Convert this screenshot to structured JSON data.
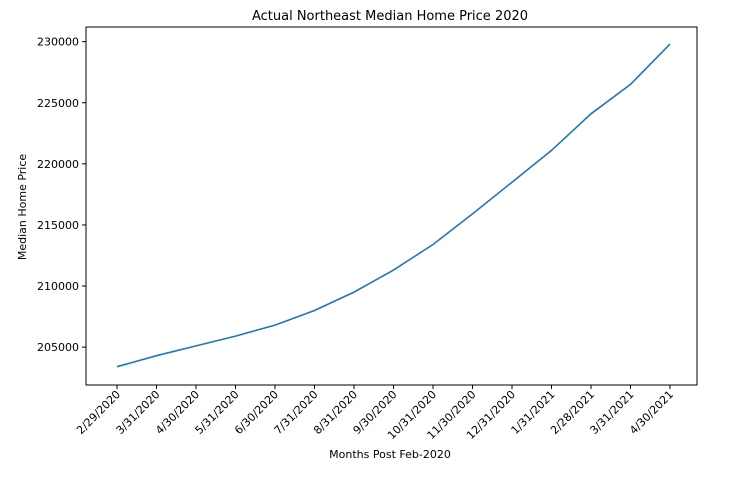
{
  "chart_data": {
    "type": "line",
    "title": "Actual Northeast Median Home Price 2020",
    "xlabel": "Months Post Feb-2020",
    "ylabel": "Median Home Price",
    "categories": [
      "2/29/2020",
      "3/31/2020",
      "4/30/2020",
      "5/31/2020",
      "6/30/2020",
      "7/31/2020",
      "8/31/2020",
      "9/30/2020",
      "10/31/2020",
      "11/30/2020",
      "12/31/2020",
      "1/31/2021",
      "2/28/2021",
      "3/31/2021",
      "4/30/2021"
    ],
    "yticks": [
      205000,
      210000,
      215000,
      220000,
      225000,
      230000
    ],
    "ylim": [
      201900,
      231200
    ],
    "grid": false,
    "series": [
      {
        "color": "#1f77b4",
        "values": [
          203400,
          204300,
          205100,
          205900,
          206800,
          208000,
          209500,
          211300,
          213400,
          215900,
          218500,
          221100,
          224100,
          226500,
          229800
        ]
      }
    ]
  }
}
